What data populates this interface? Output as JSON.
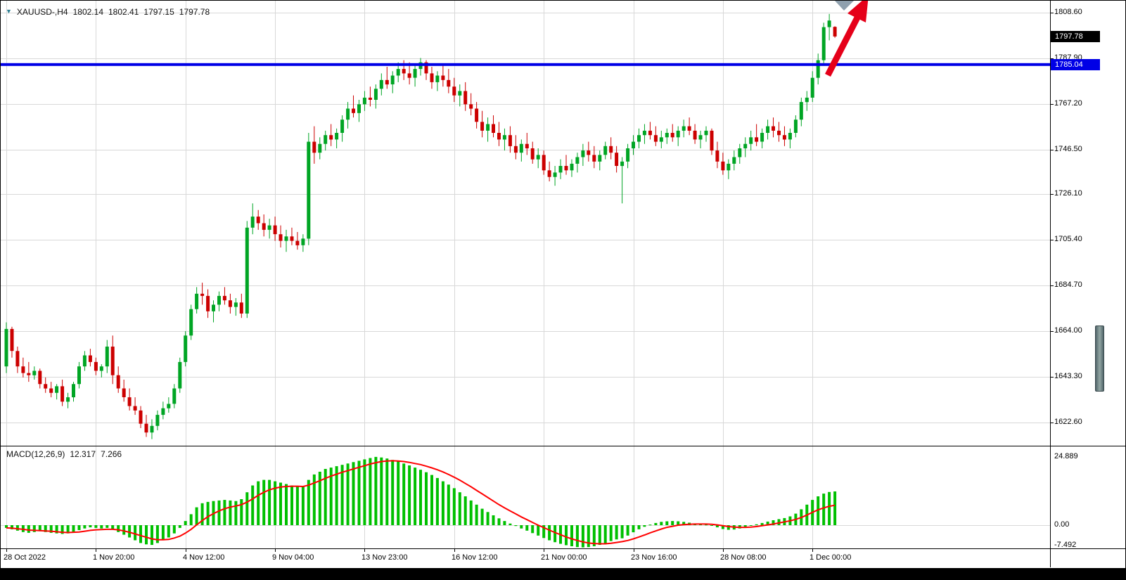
{
  "header": {
    "marker_icon": "▼",
    "symbol_tf": "XAUUSD-,H4",
    "open": "1802.14",
    "high": "1802.41",
    "low": "1797.15",
    "close": "1797.78"
  },
  "macd_panel": {
    "label": "MACD(12,26,9)",
    "main_value": "12.317",
    "signal_value": "7.266",
    "axis": {
      "max": "24.889",
      "zero": "0.00",
      "min": "-7.492"
    }
  },
  "price_axis": {
    "grid_labels": [
      "1808.60",
      "1787.90",
      "1767.20",
      "1746.50",
      "1726.10",
      "1705.40",
      "1684.70",
      "1664.00",
      "1643.30",
      "1622.60"
    ],
    "current_price": "1797.78",
    "level_price": "1785.04"
  },
  "time_axis": {
    "labels": [
      {
        "text": "28 Oct 2022",
        "bar": 0
      },
      {
        "text": "1 Nov 20:00",
        "bar": 16
      },
      {
        "text": "4 Nov 12:00",
        "bar": 32
      },
      {
        "text": "9 Nov 04:00",
        "bar": 48
      },
      {
        "text": "13 Nov 23:00",
        "bar": 64
      },
      {
        "text": "16 Nov 12:00",
        "bar": 80
      },
      {
        "text": "21 Nov 00:00",
        "bar": 96
      },
      {
        "text": "23 Nov 16:00",
        "bar": 112
      },
      {
        "text": "28 Nov 08:00",
        "bar": 128
      },
      {
        "text": "1 Dec 00:00",
        "bar": 144
      }
    ]
  },
  "colors": {
    "bull": "#00a524",
    "bear": "#cc0000",
    "macd_hist": "#00c000",
    "macd_signal": "#ff0000",
    "level_line": "#0000e6",
    "grid": "#d8d8d8",
    "arrow": "#e50019",
    "cursor_triangle": "#8fa0ae"
  },
  "chart_data": [
    {
      "type": "candlestick",
      "title": "XAUUSD- H4",
      "ylim": [
        1612,
        1814
      ],
      "y_ticks": [
        1808.6,
        1787.9,
        1767.2,
        1746.5,
        1726.1,
        1705.4,
        1684.7,
        1664.0,
        1643.3,
        1622.6
      ],
      "hline": 1785.04,
      "current_price": 1797.78,
      "last_bar": {
        "open": 1802.14,
        "high": 1802.41,
        "low": 1797.15,
        "close": 1797.78
      },
      "ohlc": [
        [
          1648,
          1668,
          1645,
          1665
        ],
        [
          1665,
          1666,
          1652,
          1655
        ],
        [
          1655,
          1657,
          1645,
          1648
        ],
        [
          1648,
          1652,
          1643,
          1645
        ],
        [
          1645,
          1650,
          1641,
          1644
        ],
        [
          1644,
          1648,
          1642,
          1646
        ],
        [
          1646,
          1647,
          1638,
          1640
        ],
        [
          1640,
          1643,
          1636,
          1638
        ],
        [
          1638,
          1641,
          1634,
          1636
        ],
        [
          1636,
          1640,
          1633,
          1639
        ],
        [
          1639,
          1642,
          1630,
          1632
        ],
        [
          1632,
          1636,
          1629,
          1634
        ],
        [
          1634,
          1641,
          1632,
          1640
        ],
        [
          1640,
          1650,
          1638,
          1648
        ],
        [
          1648,
          1655,
          1646,
          1653
        ],
        [
          1653,
          1656,
          1648,
          1650
        ],
        [
          1650,
          1652,
          1644,
          1646
        ],
        [
          1646,
          1649,
          1643,
          1648
        ],
        [
          1648,
          1660,
          1645,
          1657
        ],
        [
          1657,
          1662,
          1640,
          1644
        ],
        [
          1644,
          1648,
          1636,
          1638
        ],
        [
          1638,
          1642,
          1632,
          1634
        ],
        [
          1634,
          1638,
          1628,
          1630
        ],
        [
          1630,
          1634,
          1626,
          1628
        ],
        [
          1628,
          1630,
          1620,
          1622
        ],
        [
          1622,
          1626,
          1616,
          1618
        ],
        [
          1618,
          1624,
          1615,
          1621
        ],
        [
          1621,
          1628,
          1619,
          1626
        ],
        [
          1626,
          1632,
          1624,
          1629
        ],
        [
          1629,
          1634,
          1627,
          1631
        ],
        [
          1631,
          1640,
          1629,
          1638
        ],
        [
          1638,
          1652,
          1636,
          1650
        ],
        [
          1650,
          1664,
          1648,
          1662
        ],
        [
          1662,
          1676,
          1660,
          1674
        ],
        [
          1674,
          1684,
          1672,
          1681
        ],
        [
          1681,
          1686,
          1676,
          1680
        ],
        [
          1680,
          1683,
          1670,
          1673
        ],
        [
          1673,
          1678,
          1668,
          1676
        ],
        [
          1676,
          1682,
          1673,
          1680
        ],
        [
          1680,
          1684,
          1676,
          1678
        ],
        [
          1678,
          1681,
          1672,
          1675
        ],
        [
          1675,
          1679,
          1671,
          1677
        ],
        [
          1677,
          1681,
          1670,
          1672
        ],
        [
          1672,
          1714,
          1670,
          1711
        ],
        [
          1711,
          1722,
          1708,
          1716
        ],
        [
          1716,
          1719,
          1710,
          1713
        ],
        [
          1713,
          1717,
          1707,
          1710
        ],
        [
          1710,
          1715,
          1706,
          1712
        ],
        [
          1712,
          1716,
          1705,
          1708
        ],
        [
          1708,
          1712,
          1702,
          1705
        ],
        [
          1705,
          1710,
          1700,
          1707
        ],
        [
          1707,
          1711,
          1703,
          1705
        ],
        [
          1705,
          1709,
          1701,
          1703
        ],
        [
          1703,
          1708,
          1700,
          1706
        ],
        [
          1706,
          1754,
          1703,
          1750
        ],
        [
          1750,
          1757,
          1740,
          1745
        ],
        [
          1745,
          1752,
          1742,
          1749
        ],
        [
          1749,
          1755,
          1746,
          1753
        ],
        [
          1753,
          1758,
          1748,
          1751
        ],
        [
          1751,
          1756,
          1747,
          1754
        ],
        [
          1754,
          1762,
          1750,
          1760
        ],
        [
          1760,
          1768,
          1756,
          1765
        ],
        [
          1765,
          1771,
          1761,
          1763
        ],
        [
          1763,
          1769,
          1759,
          1767
        ],
        [
          1767,
          1773,
          1764,
          1770
        ],
        [
          1770,
          1775,
          1766,
          1769
        ],
        [
          1769,
          1776,
          1765,
          1774
        ],
        [
          1774,
          1781,
          1771,
          1778
        ],
        [
          1778,
          1784,
          1774,
          1776
        ],
        [
          1776,
          1782,
          1772,
          1780
        ],
        [
          1780,
          1786,
          1777,
          1783
        ],
        [
          1783,
          1787,
          1778,
          1781
        ],
        [
          1781,
          1786,
          1776,
          1779
        ],
        [
          1779,
          1785,
          1775,
          1783
        ],
        [
          1783,
          1788,
          1780,
          1786
        ],
        [
          1786,
          1787,
          1778,
          1781
        ],
        [
          1781,
          1784,
          1774,
          1777
        ],
        [
          1777,
          1782,
          1773,
          1780
        ],
        [
          1780,
          1785,
          1775,
          1778
        ],
        [
          1778,
          1783,
          1772,
          1775
        ],
        [
          1775,
          1779,
          1768,
          1771
        ],
        [
          1771,
          1776,
          1766,
          1773
        ],
        [
          1773,
          1777,
          1764,
          1767
        ],
        [
          1767,
          1772,
          1762,
          1765
        ],
        [
          1765,
          1768,
          1756,
          1759
        ],
        [
          1759,
          1764,
          1752,
          1755
        ],
        [
          1755,
          1761,
          1750,
          1758
        ],
        [
          1758,
          1762,
          1752,
          1754
        ],
        [
          1754,
          1759,
          1748,
          1751
        ],
        [
          1751,
          1756,
          1746,
          1753
        ],
        [
          1753,
          1757,
          1745,
          1748
        ],
        [
          1748,
          1753,
          1742,
          1745
        ],
        [
          1745,
          1751,
          1741,
          1749
        ],
        [
          1749,
          1754,
          1744,
          1747
        ],
        [
          1747,
          1750,
          1740,
          1742
        ],
        [
          1742,
          1747,
          1738,
          1744
        ],
        [
          1744,
          1746,
          1735,
          1737
        ],
        [
          1737,
          1741,
          1732,
          1734
        ],
        [
          1734,
          1739,
          1730,
          1736
        ],
        [
          1736,
          1742,
          1733,
          1739
        ],
        [
          1739,
          1744,
          1735,
          1737
        ],
        [
          1737,
          1742,
          1734,
          1740
        ],
        [
          1740,
          1745,
          1736,
          1743
        ],
        [
          1743,
          1749,
          1739,
          1746
        ],
        [
          1746,
          1750,
          1741,
          1744
        ],
        [
          1744,
          1748,
          1738,
          1741
        ],
        [
          1741,
          1746,
          1737,
          1744
        ],
        [
          1744,
          1750,
          1742,
          1748
        ],
        [
          1748,
          1752,
          1742,
          1745
        ],
        [
          1745,
          1748,
          1736,
          1739
        ],
        [
          1739,
          1743,
          1722,
          1741
        ],
        [
          1741,
          1749,
          1738,
          1747
        ],
        [
          1747,
          1753,
          1744,
          1750
        ],
        [
          1750,
          1756,
          1747,
          1753
        ],
        [
          1753,
          1758,
          1749,
          1755
        ],
        [
          1755,
          1759,
          1751,
          1753
        ],
        [
          1753,
          1757,
          1748,
          1750
        ],
        [
          1750,
          1755,
          1747,
          1752
        ],
        [
          1752,
          1756,
          1749,
          1754
        ],
        [
          1754,
          1758,
          1750,
          1752
        ],
        [
          1752,
          1757,
          1748,
          1755
        ],
        [
          1755,
          1760,
          1752,
          1757
        ],
        [
          1757,
          1761,
          1753,
          1755
        ],
        [
          1755,
          1758,
          1749,
          1751
        ],
        [
          1751,
          1755,
          1747,
          1753
        ],
        [
          1753,
          1757,
          1750,
          1755
        ],
        [
          1755,
          1756,
          1744,
          1746
        ],
        [
          1746,
          1750,
          1738,
          1741
        ],
        [
          1741,
          1745,
          1735,
          1737
        ],
        [
          1737,
          1742,
          1733,
          1740
        ],
        [
          1740,
          1746,
          1737,
          1743
        ],
        [
          1743,
          1749,
          1740,
          1747
        ],
        [
          1747,
          1752,
          1743,
          1749
        ],
        [
          1749,
          1755,
          1746,
          1752
        ],
        [
          1752,
          1758,
          1748,
          1750
        ],
        [
          1750,
          1756,
          1747,
          1754
        ],
        [
          1754,
          1760,
          1751,
          1757
        ],
        [
          1757,
          1761,
          1752,
          1755
        ],
        [
          1755,
          1759,
          1750,
          1753
        ],
        [
          1753,
          1757,
          1748,
          1751
        ],
        [
          1751,
          1756,
          1747,
          1754
        ],
        [
          1754,
          1762,
          1752,
          1760
        ],
        [
          1760,
          1770,
          1757,
          1768
        ],
        [
          1768,
          1773,
          1764,
          1770
        ],
        [
          1770,
          1782,
          1768,
          1779
        ],
        [
          1779,
          1790,
          1776,
          1787
        ],
        [
          1787,
          1804,
          1785,
          1802
        ],
        [
          1802,
          1808,
          1796,
          1805
        ],
        [
          1802.14,
          1802.41,
          1797.15,
          1797.78
        ]
      ]
    },
    {
      "type": "bar",
      "name": "MACD(12,26,9)",
      "main": 12.317,
      "signal": 7.266,
      "ylim": [
        -12,
        30
      ],
      "y_ticks": [
        24.889,
        0,
        -7.492
      ],
      "histogram": [
        -1,
        -1.5,
        -2,
        -2.5,
        -2.8,
        -2.5,
        -2.2,
        -2.5,
        -2.8,
        -3,
        -3.2,
        -3,
        -2.5,
        -1.8,
        -1.2,
        -0.8,
        -1,
        -1.2,
        -1,
        -1.5,
        -2.5,
        -3.5,
        -4.5,
        -5.5,
        -6.5,
        -7,
        -7.2,
        -6.5,
        -5.5,
        -4.5,
        -3,
        -1,
        1.5,
        4,
        6.5,
        8,
        8.5,
        8.8,
        9,
        9.2,
        9,
        8.8,
        9.5,
        12,
        14.5,
        16,
        16.5,
        16.5,
        16,
        15.5,
        15,
        14.5,
        14,
        14,
        16.5,
        18.5,
        19.5,
        20.5,
        21,
        21.5,
        22,
        22.5,
        23,
        23.5,
        24,
        24.5,
        24.9,
        24.7,
        24.3,
        23.8,
        23.2,
        22.5,
        21.8,
        21,
        20.2,
        19.3,
        18.3,
        17.2,
        16,
        14.8,
        13.5,
        12,
        10.5,
        9,
        7.5,
        6,
        4.8,
        3.6,
        2.5,
        1.5,
        0.6,
        -0.3,
        -1.2,
        -2,
        -2.9,
        -3.8,
        -4.7,
        -5.5,
        -6.2,
        -6.8,
        -7.3,
        -7.7,
        -8,
        -8.1,
        -8,
        -7.7,
        -7.2,
        -6.6,
        -5.8,
        -5.2,
        -4.8,
        -3.8,
        -2.6,
        -1.5,
        -0.6,
        0.2,
        0.8,
        1.2,
        1.4,
        1.5,
        1.4,
        1.2,
        0.9,
        0.6,
        0.3,
        0.2,
        -0.2,
        -0.8,
        -1.4,
        -1.7,
        -1.6,
        -1.2,
        -0.7,
        -0.2,
        0.3,
        0.8,
        1.3,
        1.8,
        2.2,
        2.6,
        3.2,
        4.2,
        5.8,
        7.5,
        9.2,
        10.5,
        11.5,
        12.1,
        12.317
      ],
      "signal_line": [
        -1,
        -1.1,
        -1.3,
        -1.5,
        -1.8,
        -1.9,
        -2,
        -2.1,
        -2.2,
        -2.4,
        -2.6,
        -2.7,
        -2.6,
        -2.5,
        -2.2,
        -1.9,
        -1.7,
        -1.6,
        -1.5,
        -1.5,
        -1.7,
        -2.1,
        -2.6,
        -3.2,
        -3.8,
        -4.4,
        -5,
        -5.3,
        -5.3,
        -5.2,
        -4.7,
        -4,
        -2.9,
        -1.5,
        0.1,
        1.7,
        3.1,
        4.2,
        5.2,
        6,
        6.6,
        7,
        7.5,
        8.4,
        9.6,
        10.9,
        12,
        12.9,
        13.5,
        13.9,
        14.1,
        14.2,
        14.2,
        14.1,
        14.6,
        15.4,
        16.2,
        17.1,
        17.9,
        18.6,
        19.3,
        19.9,
        20.5,
        21.1,
        21.7,
        22.3,
        22.8,
        23.2,
        23.4,
        23.5,
        23.4,
        23.2,
        22.9,
        22.5,
        22.1,
        21.5,
        20.9,
        20.2,
        19.4,
        18.5,
        17.5,
        16.4,
        15.2,
        14,
        12.7,
        11.4,
        10.1,
        8.8,
        7.5,
        6.3,
        5.2,
        4.1,
        3,
        2,
        1,
        0,
        -0.9,
        -1.8,
        -2.7,
        -3.5,
        -4.3,
        -5,
        -5.6,
        -6.1,
        -6.5,
        -6.7,
        -6.8,
        -6.8,
        -6.6,
        -6.3,
        -6,
        -5.6,
        -5,
        -4.3,
        -3.6,
        -2.8,
        -2.1,
        -1.4,
        -0.8,
        -0.4,
        0,
        0.2,
        0.3,
        0.4,
        0.4,
        0.4,
        0.3,
        0.1,
        -0.2,
        -0.5,
        -0.7,
        -0.8,
        -0.8,
        -0.7,
        -0.5,
        -0.2,
        0.1,
        0.4,
        0.8,
        1.2,
        1.6,
        2.1,
        2.8,
        3.7,
        4.7,
        5.6,
        6.3,
        6.9,
        7.266
      ]
    }
  ]
}
